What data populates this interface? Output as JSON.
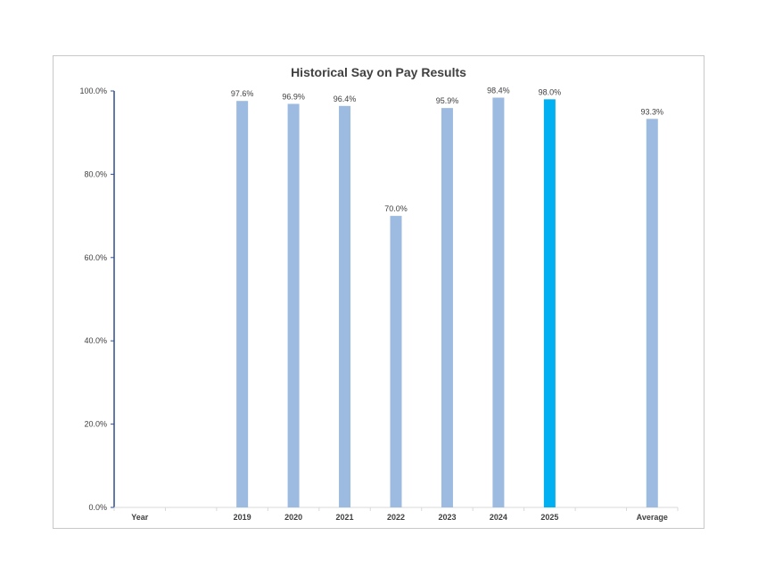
{
  "chart_data": {
    "type": "bar",
    "title": "Historical Say on Pay Results",
    "xlabel": "",
    "ylabel": "",
    "categories": [
      "Year",
      "",
      "2019",
      "2020",
      "2021",
      "2022",
      "2023",
      "2024",
      "2025",
      "",
      "Average"
    ],
    "values": [
      null,
      null,
      97.6,
      96.9,
      96.4,
      70.0,
      95.9,
      98.4,
      98.0,
      null,
      93.3
    ],
    "data_labels": [
      "",
      "",
      "97.6%",
      "96.9%",
      "96.4%",
      "70.0%",
      "95.9%",
      "98.4%",
      "98.0%",
      "",
      "93.3%"
    ],
    "highlight_category": "2025",
    "ylim": [
      0,
      100
    ],
    "yticks": [
      0,
      20,
      40,
      60,
      80,
      100
    ],
    "ytick_labels": [
      "0.0%",
      "20.0%",
      "40.0%",
      "60.0%",
      "80.0%",
      "100.0%"
    ],
    "grid": false,
    "legend": "none",
    "colors": {
      "bar": "#9dbbe0",
      "highlight": "#00b0f0",
      "y_axis": "#2f4f8f",
      "x_axis": "#d9d9d9",
      "text": "#404040"
    }
  }
}
